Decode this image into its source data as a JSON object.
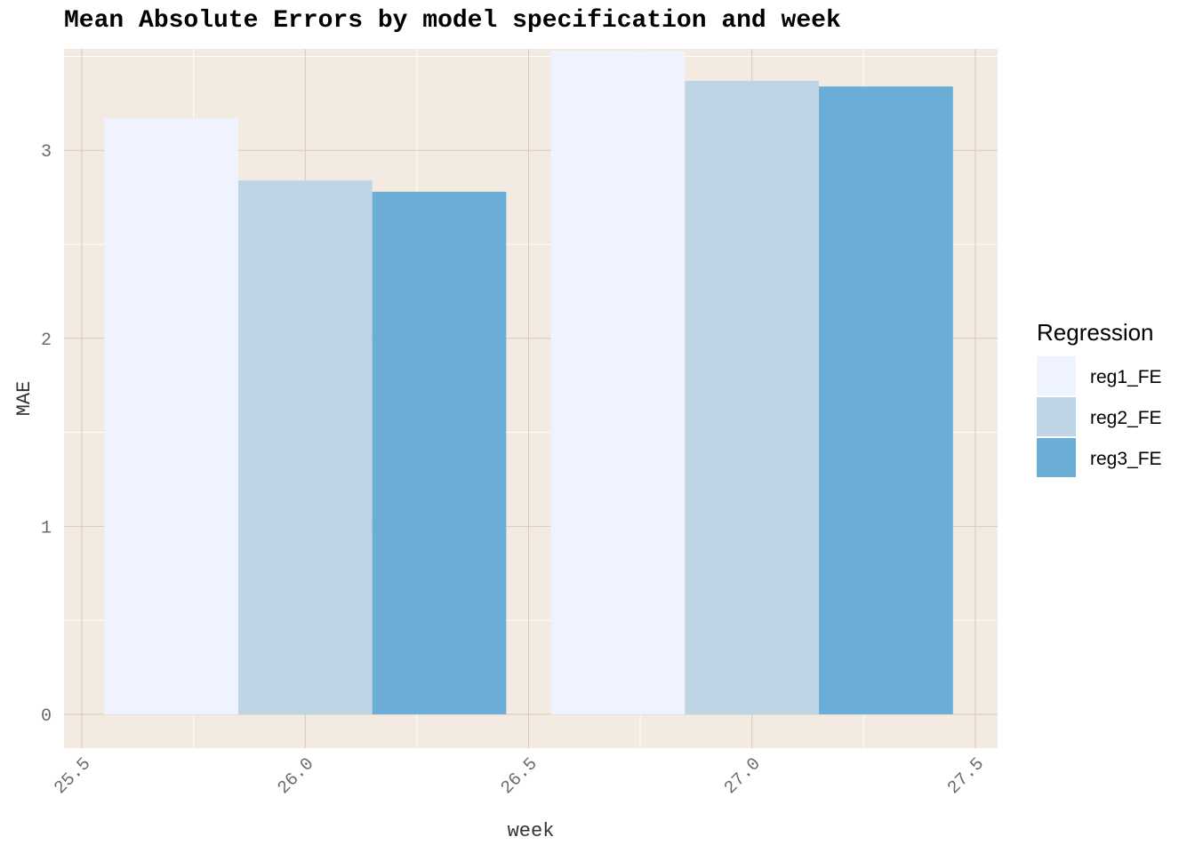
{
  "chart_data": {
    "type": "bar",
    "title": "Mean Absolute Errors by model specification and week",
    "xlabel": "week",
    "ylabel": "MAE",
    "x": [
      26,
      27
    ],
    "xlim": [
      25.46,
      27.55
    ],
    "ylim": [
      -0.18,
      3.54
    ],
    "x_ticks": [
      "25.5",
      "26.0",
      "26.5",
      "27.0",
      "27.5"
    ],
    "x_tick_values": [
      25.5,
      26.0,
      26.5,
      27.0,
      27.5
    ],
    "y_ticks": [
      "0",
      "1",
      "2",
      "3"
    ],
    "y_tick_values": [
      0,
      1,
      2,
      3
    ],
    "bar_width": 0.9,
    "legend": {
      "title": "Regression",
      "position": "right"
    },
    "grid": true,
    "series": [
      {
        "name": "reg1_FE",
        "color": "#eef3fd",
        "values": [
          3.17,
          3.53
        ]
      },
      {
        "name": "reg2_FE",
        "color": "#bed5e5",
        "values": [
          2.84,
          3.37
        ]
      },
      {
        "name": "reg3_FE",
        "color": "#6aaed7",
        "values": [
          2.78,
          3.34
        ]
      }
    ],
    "panel_color": "#f3eae2",
    "grid_major_color": "#d7c9bd",
    "grid_minor_color": "#ffffff"
  }
}
